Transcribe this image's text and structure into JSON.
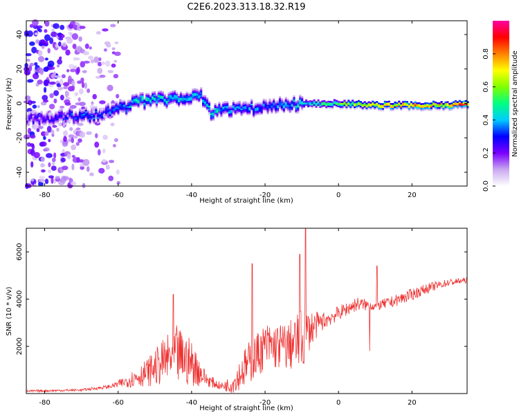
{
  "title": "C2E6.2023.313.18.32.R19",
  "chart_data": [
    {
      "type": "heatmap",
      "xlabel": "Height of straight line (km)",
      "ylabel": "Frequency (Hz)",
      "xlim": [
        -85,
        35
      ],
      "ylim": [
        -48,
        48
      ],
      "xticks": [
        -80,
        -60,
        -40,
        -20,
        0,
        20
      ],
      "yticks": [
        -40,
        -20,
        0,
        20,
        40
      ],
      "colorbar": {
        "label": "Normalized spectral amplitude",
        "ticks": [
          0.0,
          0.2,
          0.4,
          0.6,
          0.8
        ],
        "ticklabels": [
          "0.0",
          "0.2",
          "0.4",
          "0.6",
          "0.8"
        ],
        "range": [
          0,
          1
        ],
        "colormap": [
          "#ffffff",
          "#c9a8f0",
          "#7a00ff",
          "#0000ff",
          "#00ccff",
          "#00ff80",
          "#80ff00",
          "#ffff00",
          "#ff8000",
          "#ff0000",
          "#ff00a0"
        ]
      },
      "ridge": {
        "x": [
          -80,
          -70,
          -62,
          -55,
          -45,
          -38,
          -35,
          -30,
          -20,
          -10,
          0,
          10,
          20,
          30,
          34
        ],
        "y": [
          -9,
          -7,
          -5,
          1,
          3,
          5,
          -5,
          -4,
          -2,
          0,
          0,
          -1,
          -1,
          -1,
          0
        ],
        "amplitude": [
          0.25,
          0.35,
          0.35,
          0.45,
          0.45,
          0.4,
          0.45,
          0.4,
          0.35,
          0.45,
          0.6,
          0.75,
          0.8,
          0.8,
          0.9
        ]
      }
    },
    {
      "type": "line",
      "xlabel": "Height of straight line (km)",
      "ylabel": "SNR (10 * v/v)",
      "xlim": [
        -85,
        35
      ],
      "ylim": [
        0,
        7000
      ],
      "xticks": [
        -80,
        -60,
        -40,
        -20,
        0,
        20
      ],
      "yticks": [
        2000,
        4000,
        6000
      ],
      "color": "#ee3333",
      "envelope": {
        "x": [
          -85,
          -70,
          -62,
          -58,
          -52,
          -46,
          -44,
          -40,
          -36,
          -32,
          -29,
          -25,
          -20,
          -14,
          -10,
          -8,
          -5,
          0,
          5,
          10,
          15,
          20,
          25,
          30,
          35
        ],
        "baseline": [
          100,
          150,
          300,
          500,
          900,
          1500,
          1600,
          1300,
          600,
          300,
          400,
          1200,
          2000,
          2000,
          2200,
          2700,
          3000,
          3400,
          3800,
          3700,
          3900,
          4200,
          4500,
          4700,
          4800
        ],
        "amplitude": [
          50,
          50,
          80,
          250,
          600,
          1100,
          1300,
          1000,
          300,
          150,
          400,
          900,
          1000,
          1000,
          1400,
          900,
          400,
          300,
          300,
          200,
          250,
          250,
          200,
          150,
          120
        ]
      },
      "spikes": [
        {
          "x": -45,
          "y": 4200
        },
        {
          "x": -23.5,
          "y": 5500
        },
        {
          "x": -10.5,
          "y": 5900
        },
        {
          "x": -9,
          "y": 7000
        },
        {
          "x": 10.5,
          "y": 5400
        },
        {
          "x": 8.5,
          "y": 1800
        }
      ]
    }
  ]
}
